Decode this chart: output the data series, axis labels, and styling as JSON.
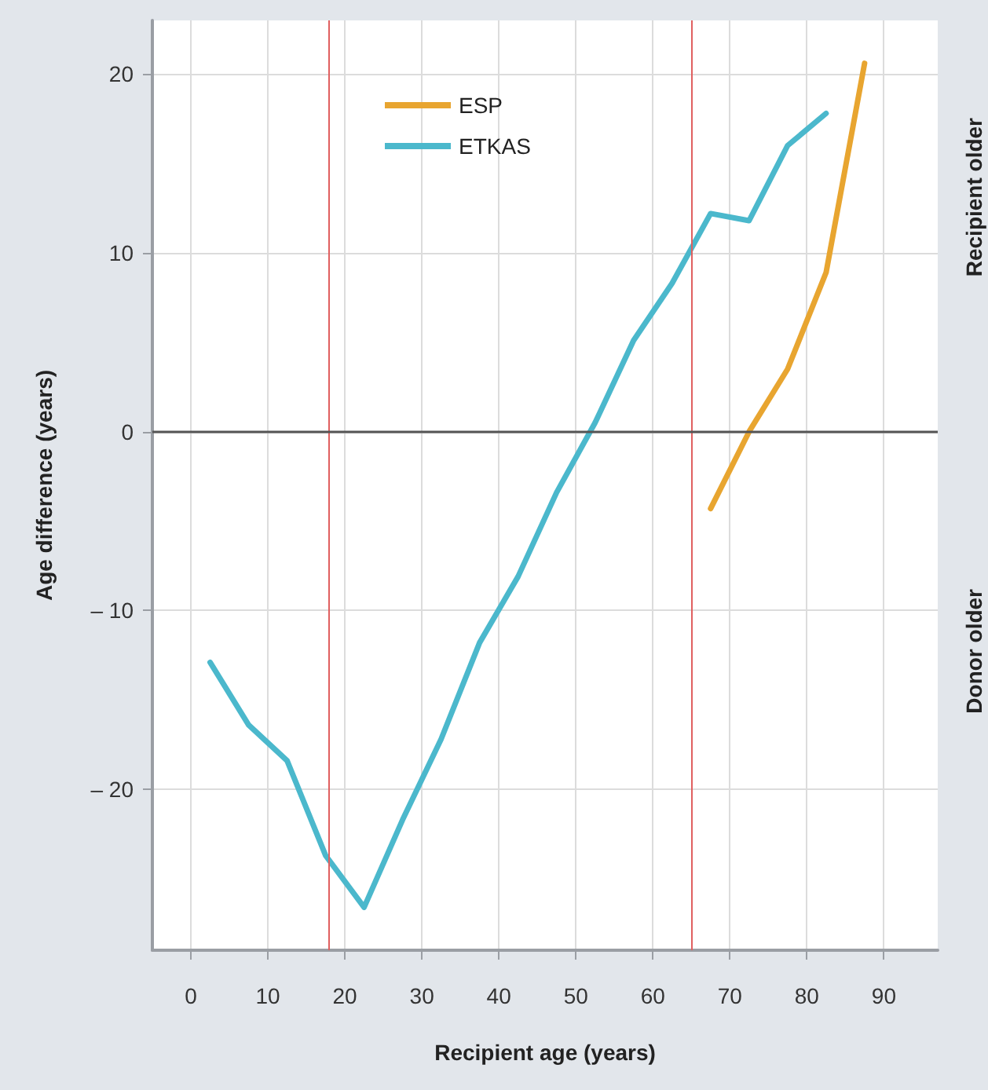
{
  "chart_data": {
    "type": "line",
    "xlabel": "Recipient age (years)",
    "ylabel": "Age difference (years)",
    "x": [
      2.5,
      7.5,
      12.5,
      17.5,
      22.5,
      27.5,
      32.5,
      37.5,
      42.5,
      47.5,
      52.5,
      57.5,
      62.5,
      67.5,
      72.5,
      77.5,
      82.5
    ],
    "series": [
      {
        "name": "ESP",
        "color": "#e8a530",
        "x": [
          67.5,
          72.5,
          77.5,
          82.5,
          87.5
        ],
        "values": [
          -4.3,
          0,
          3.5,
          8.9,
          20.6
        ]
      },
      {
        "name": "ETKAS",
        "color": "#4bb8cc",
        "values": [
          -12.9,
          -16.4,
          -18.4,
          -23.7,
          -26.6,
          -21.7,
          -17.2,
          -11.8,
          -8.1,
          -3.4,
          0.5,
          5.1,
          8.3,
          12.2,
          11.8,
          16.0,
          17.8
        ]
      }
    ],
    "xlim": [
      -5,
      97
    ],
    "xticks": [
      0,
      10,
      20,
      30,
      40,
      50,
      60,
      70,
      80,
      90
    ],
    "ylim": [
      -29,
      23
    ],
    "yticks": [
      {
        "value": -20,
        "label": "– 20"
      },
      {
        "value": -10,
        "label": "– 10"
      },
      0,
      10,
      20
    ],
    "ref_lines": [
      {
        "axis": "x",
        "value": 18,
        "color": "#e06060"
      },
      {
        "axis": "x",
        "value": 65,
        "color": "#e06060"
      },
      {
        "axis": "y",
        "value": 0,
        "color": "#555555"
      }
    ],
    "annotations": [
      "Recipient older",
      "Donor older"
    ],
    "grid": true,
    "legend": "top left",
    "marker": "none",
    "line_style": "solid"
  }
}
